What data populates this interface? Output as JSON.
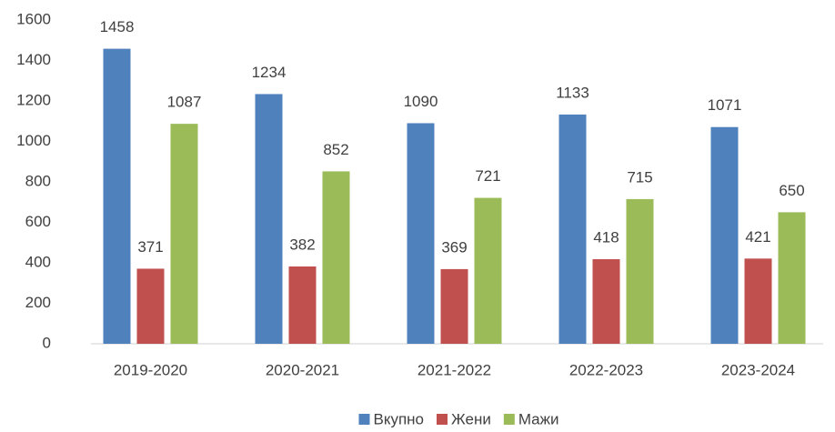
{
  "chart_data": {
    "type": "bar",
    "categories": [
      "2019-2020",
      "2020-2021",
      "2021-2022",
      "2022-2023",
      "2023-2024"
    ],
    "series": [
      {
        "name": "Вкупно",
        "color": "#4f81bd",
        "values": [
          1458,
          1234,
          1090,
          1133,
          1071
        ]
      },
      {
        "name": "Жени",
        "color": "#c0504d",
        "values": [
          371,
          382,
          369,
          418,
          421
        ]
      },
      {
        "name": "Мажи",
        "color": "#9bbb59",
        "values": [
          1087,
          852,
          721,
          715,
          650
        ]
      }
    ],
    "ylim": [
      0,
      1600
    ],
    "yticks": [
      0,
      200,
      400,
      600,
      800,
      1000,
      1200,
      1400,
      1600
    ],
    "grid": false,
    "legend": "bottom"
  }
}
